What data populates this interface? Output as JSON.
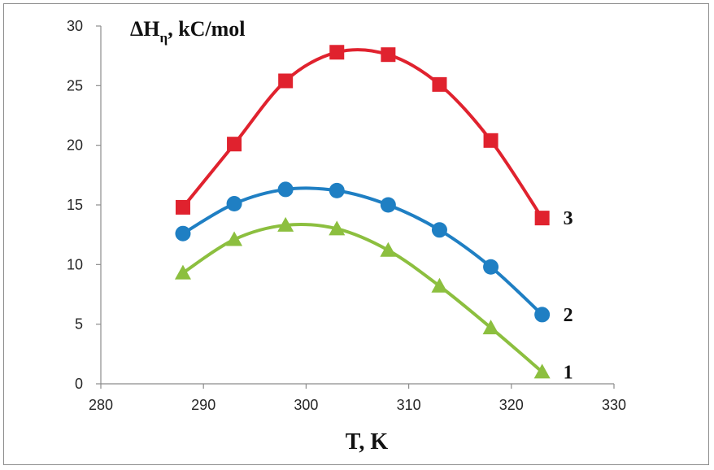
{
  "chart_data": {
    "type": "line",
    "ylabel_main": "ΔH",
    "ylabel_sub": "η",
    "ylabel_rest": ", kC/mol",
    "xlabel": "T, K",
    "xlim": [
      280,
      330
    ],
    "ylim": [
      0,
      30
    ],
    "xticks": [
      280,
      290,
      300,
      310,
      320,
      330
    ],
    "yticks": [
      0,
      5,
      10,
      15,
      20,
      25,
      30
    ],
    "grid": false,
    "series": [
      {
        "label": "3",
        "color": "#e0222e",
        "marker": "square",
        "x": [
          288,
          293,
          298,
          303,
          308,
          313,
          318,
          323
        ],
        "y": [
          14.8,
          20.1,
          25.4,
          27.8,
          27.6,
          25.1,
          20.4,
          13.9
        ]
      },
      {
        "label": "2",
        "color": "#1f7fc3",
        "marker": "circle",
        "x": [
          288,
          293,
          298,
          303,
          308,
          313,
          318,
          323
        ],
        "y": [
          12.6,
          15.1,
          16.3,
          16.2,
          15.0,
          12.9,
          9.8,
          5.8
        ]
      },
      {
        "label": "1",
        "color": "#8cbf3f",
        "marker": "triangle",
        "x": [
          288,
          293,
          298,
          303,
          308,
          313,
          318,
          323
        ],
        "y": [
          9.3,
          12.1,
          13.3,
          13.0,
          11.2,
          8.2,
          4.7,
          1.0
        ]
      }
    ]
  }
}
